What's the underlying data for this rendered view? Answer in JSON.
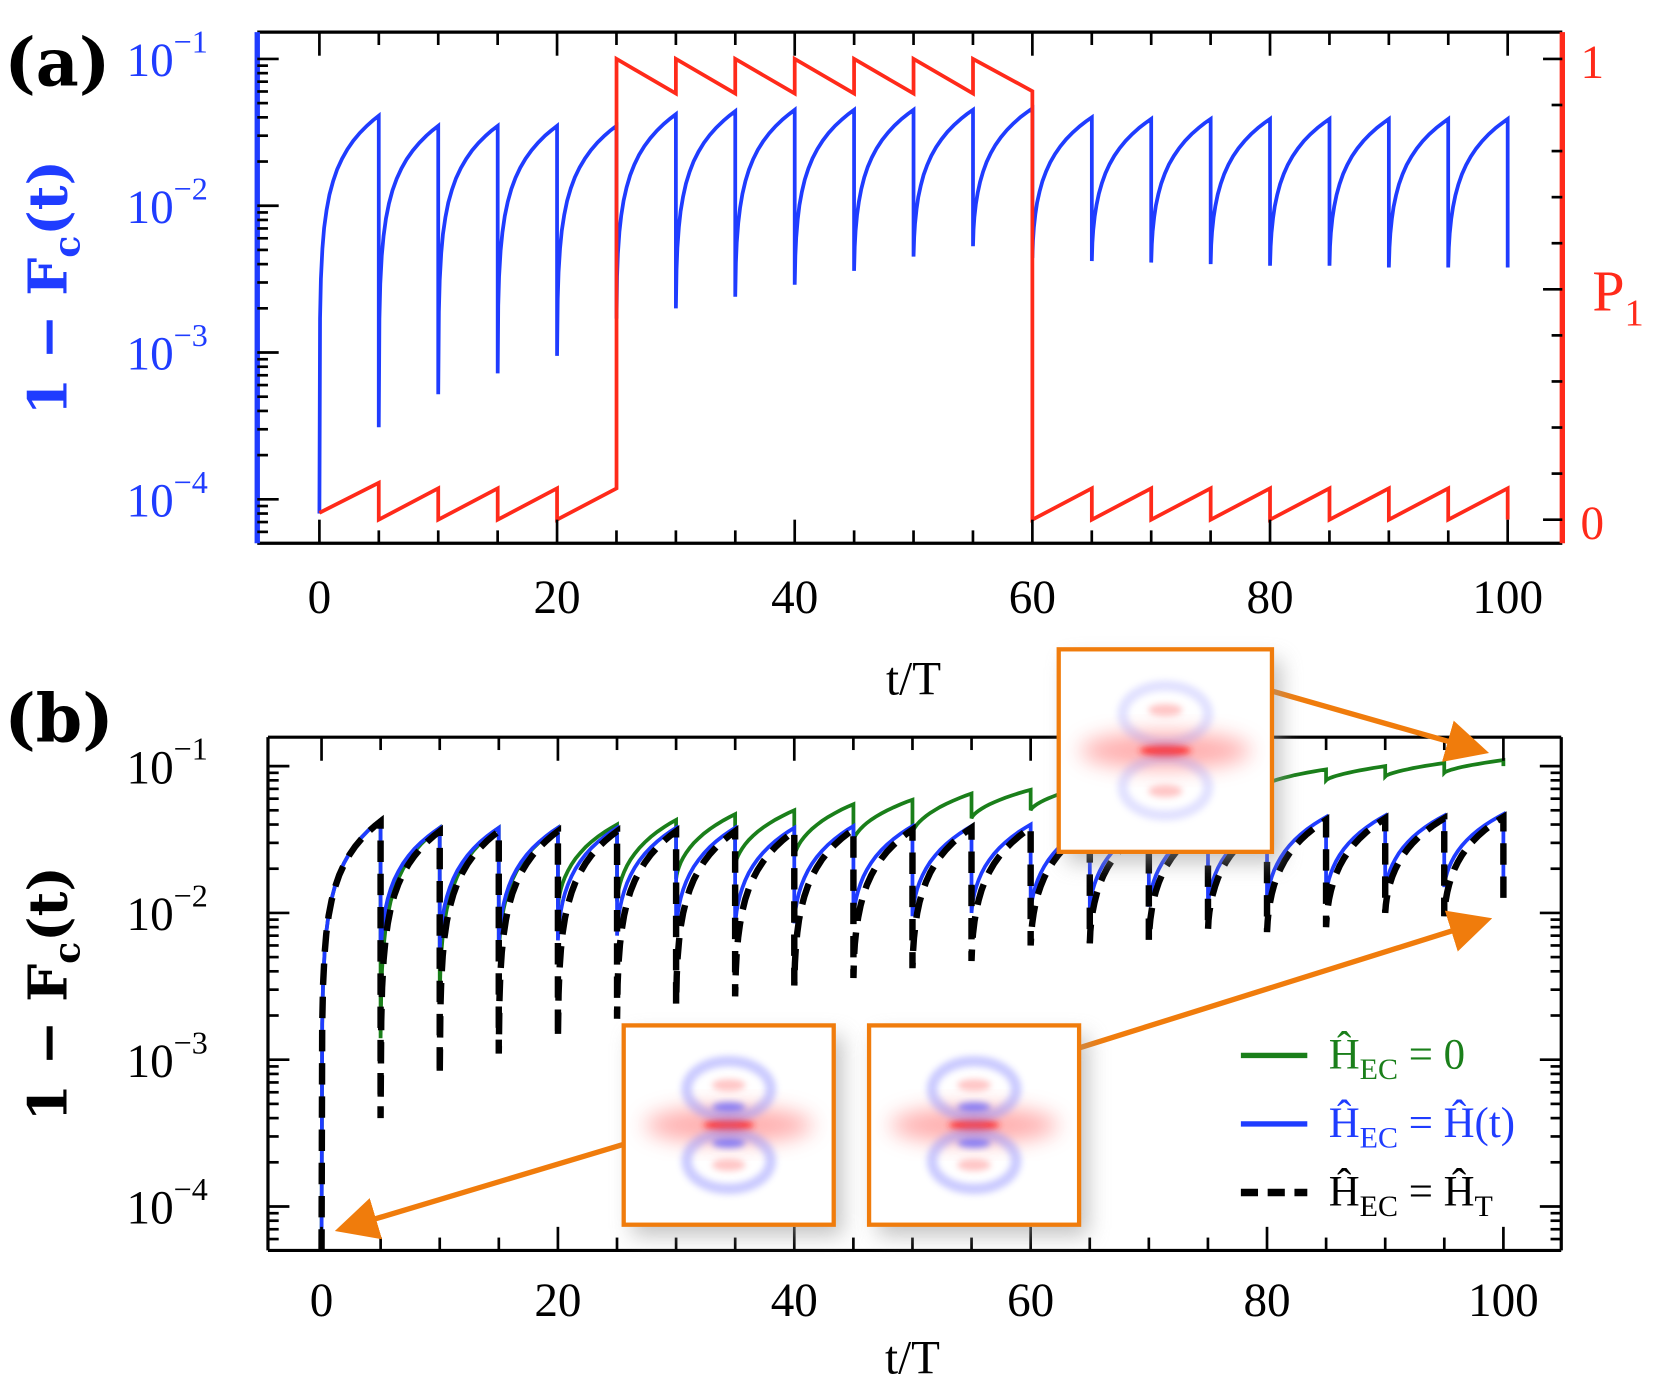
{
  "panels": {
    "a": {
      "label": "(a)"
    },
    "b": {
      "label": "(b)"
    }
  },
  "legend": [
    {
      "parts": [
        {
          "t": "Ĥ",
          "k": ""
        },
        {
          "t": "EC",
          "k": "sub"
        },
        {
          "t": " = 0",
          "k": ""
        }
      ],
      "color": "#1a7f1a",
      "style": "solid"
    },
    {
      "parts": [
        {
          "t": "Ĥ",
          "k": ""
        },
        {
          "t": "EC",
          "k": "sub"
        },
        {
          "t": " = Ĥ(t)",
          "k": ""
        }
      ],
      "color": "#1f3cff",
      "style": "solid"
    },
    {
      "parts": [
        {
          "t": "Ĥ",
          "k": ""
        },
        {
          "t": "EC",
          "k": "sub"
        },
        {
          "t": " = Ĥ",
          "k": ""
        },
        {
          "t": "T",
          "k": "sub"
        }
      ],
      "color": "#000000",
      "style": "dashed"
    }
  ],
  "colors": {
    "blue": "#1f3cff",
    "red": "#ff2a1a",
    "green": "#1a7f1a",
    "black": "#000000",
    "inset_border": "#f07c0c"
  },
  "chart_data": [
    {
      "panel": "(a)",
      "type": "line",
      "xlabel": "t/T",
      "ylabel": {
        "main": "1 − F",
        "sub": "c",
        "tail": "(t)"
      },
      "y2label": {
        "main": "P",
        "sub": "1"
      },
      "xlim": [
        -5.2,
        104.6
      ],
      "ylim": [
        5e-05,
        0.15
      ],
      "yscale": "log",
      "y2lim": [
        -0.05,
        1.06
      ],
      "xticks": [
        "0",
        "20",
        "40",
        "60",
        "80",
        "100"
      ],
      "yticks": [
        {
          "base": "10",
          "exp": "−1",
          "v": 0.1
        },
        {
          "base": "10",
          "exp": "−2",
          "v": 0.01
        },
        {
          "base": "10",
          "exp": "−3",
          "v": 0.001
        },
        {
          "base": "10",
          "exp": "−4",
          "v": 0.0001
        }
      ],
      "y2ticks": [
        {
          "label": "1",
          "v": 1
        },
        {
          "label": "0",
          "v": 0
        }
      ],
      "grid": false,
      "series": [
        {
          "axis": "left",
          "color": "#1f3cff",
          "style": "solid",
          "shape": "sawtooth",
          "segment_starts": [
            0,
            5,
            10,
            15,
            20,
            25,
            30,
            35,
            40,
            45,
            50,
            55,
            60,
            65,
            70,
            75,
            80,
            85,
            90,
            95
          ],
          "segment_length": 5,
          "start_values": [
            8e-05,
            0.00031,
            0.00052,
            0.00072,
            0.00095,
            0.0017,
            0.002,
            0.0024,
            0.0029,
            0.0036,
            0.0045,
            0.0053,
            0.0044,
            0.0042,
            0.0041,
            0.004,
            0.0039,
            0.0039,
            0.0038,
            0.0038
          ],
          "end_values": [
            0.041,
            0.035,
            0.035,
            0.035,
            0.035,
            0.042,
            0.044,
            0.045,
            0.045,
            0.045,
            0.045,
            0.046,
            0.04,
            0.039,
            0.039,
            0.039,
            0.039,
            0.039,
            0.039,
            0.039
          ],
          "final_value": 0.0038
        },
        {
          "axis": "right",
          "color": "#ff2a1a",
          "style": "solid",
          "shape": "linear-sawtooth",
          "segment_starts": [
            0,
            5,
            10,
            15,
            20,
            25,
            30,
            35,
            40,
            45,
            50,
            55,
            60,
            65,
            70,
            75,
            80,
            85,
            90,
            95
          ],
          "segment_length": 5,
          "start_values": [
            0.015,
            0,
            0,
            0,
            0,
            1,
            1,
            1,
            1,
            1,
            1,
            1,
            0,
            0,
            0,
            0,
            0,
            0,
            0,
            0
          ],
          "end_values": [
            0.08,
            0.068,
            0.068,
            0.068,
            0.068,
            0.925,
            0.925,
            0.925,
            0.925,
            0.925,
            0.925,
            0.93,
            0.068,
            0.068,
            0.068,
            0.068,
            0.068,
            0.068,
            0.068,
            0.068
          ],
          "final_value": 0
        }
      ]
    },
    {
      "panel": "(b)",
      "type": "line",
      "xlabel": "t/T",
      "ylabel": {
        "main": "1 − F",
        "sub": "c",
        "tail": "(t)"
      },
      "xlim": [
        -4.5,
        104.9
      ],
      "ylim": [
        5e-05,
        0.16
      ],
      "yscale": "log",
      "xticks": [
        "0",
        "20",
        "40",
        "60",
        "80",
        "100"
      ],
      "yticks": [
        {
          "base": "10",
          "exp": "−1",
          "v": 0.1
        },
        {
          "base": "10",
          "exp": "−2",
          "v": 0.01
        },
        {
          "base": "10",
          "exp": "−3",
          "v": 0.001
        },
        {
          "base": "10",
          "exp": "−4",
          "v": 0.0001
        }
      ],
      "grid": false,
      "legend_position": "bottom-right",
      "series": [
        {
          "legend_index": 0,
          "color": "#1a7f1a",
          "style": "solid",
          "shape": "sawtooth",
          "segment_starts": [
            0,
            5,
            10,
            15,
            20,
            25,
            30,
            35,
            40,
            45,
            50,
            55,
            60,
            65,
            70,
            75,
            80,
            85,
            90,
            95
          ],
          "segment_length": 5,
          "start_values": [
            5e-05,
            0.0014,
            0.0026,
            0.005,
            0.011,
            0.012,
            0.017,
            0.021,
            0.024,
            0.031,
            0.035,
            0.044,
            0.05,
            0.058,
            0.065,
            0.07,
            0.075,
            0.08,
            0.085,
            0.09
          ],
          "end_values": [
            0.043,
            0.038,
            0.038,
            0.038,
            0.04,
            0.043,
            0.047,
            0.05,
            0.055,
            0.059,
            0.065,
            0.069,
            0.074,
            0.079,
            0.084,
            0.089,
            0.095,
            0.1,
            0.105,
            0.11
          ],
          "final_value": 0.1
        },
        {
          "legend_index": 1,
          "color": "#1f3cff",
          "style": "solid",
          "shape": "sawtooth",
          "segment_starts": [
            0,
            5,
            10,
            15,
            20,
            25,
            30,
            35,
            40,
            45,
            50,
            55,
            60,
            65,
            70,
            75,
            80,
            85,
            90,
            95
          ],
          "segment_length": 5,
          "start_values": [
            5e-05,
            0.005,
            0.0055,
            0.006,
            0.0065,
            0.007,
            0.0075,
            0.008,
            0.0085,
            0.009,
            0.0095,
            0.01,
            0.01,
            0.0105,
            0.011,
            0.011,
            0.012,
            0.013,
            0.014,
            0.015
          ],
          "end_values": [
            0.043,
            0.038,
            0.038,
            0.038,
            0.038,
            0.038,
            0.038,
            0.038,
            0.039,
            0.039,
            0.039,
            0.04,
            0.04,
            0.041,
            0.042,
            0.043,
            0.045,
            0.046,
            0.046,
            0.047
          ],
          "final_value": 0.015
        },
        {
          "legend_index": 2,
          "color": "#000000",
          "style": "dashed",
          "shape": "sawtooth",
          "segment_starts": [
            0,
            5,
            10,
            15,
            20,
            25,
            30,
            35,
            40,
            45,
            50,
            55,
            60,
            65,
            70,
            75,
            80,
            85,
            90,
            95
          ],
          "segment_length": 5,
          "start_values": [
            5e-05,
            0.0004,
            0.00078,
            0.0011,
            0.0014,
            0.0019,
            0.0024,
            0.0027,
            0.0032,
            0.0036,
            0.0042,
            0.0047,
            0.006,
            0.0062,
            0.0065,
            0.0076,
            0.0074,
            0.008,
            0.01,
            0.0095
          ],
          "end_values": [
            0.042,
            0.036,
            0.036,
            0.036,
            0.036,
            0.036,
            0.036,
            0.036,
            0.037,
            0.037,
            0.038,
            0.038,
            0.038,
            0.039,
            0.04,
            0.041,
            0.043,
            0.044,
            0.044,
            0.045
          ],
          "final_value": 0.011
        }
      ],
      "insets": [
        {
          "points_to_t": 100,
          "points_to_value": 0.1
        },
        {
          "points_to_t": 0,
          "points_to_value": 6e-05
        },
        {
          "points_to_t": 100,
          "points_to_value": 0.0095
        }
      ]
    }
  ]
}
